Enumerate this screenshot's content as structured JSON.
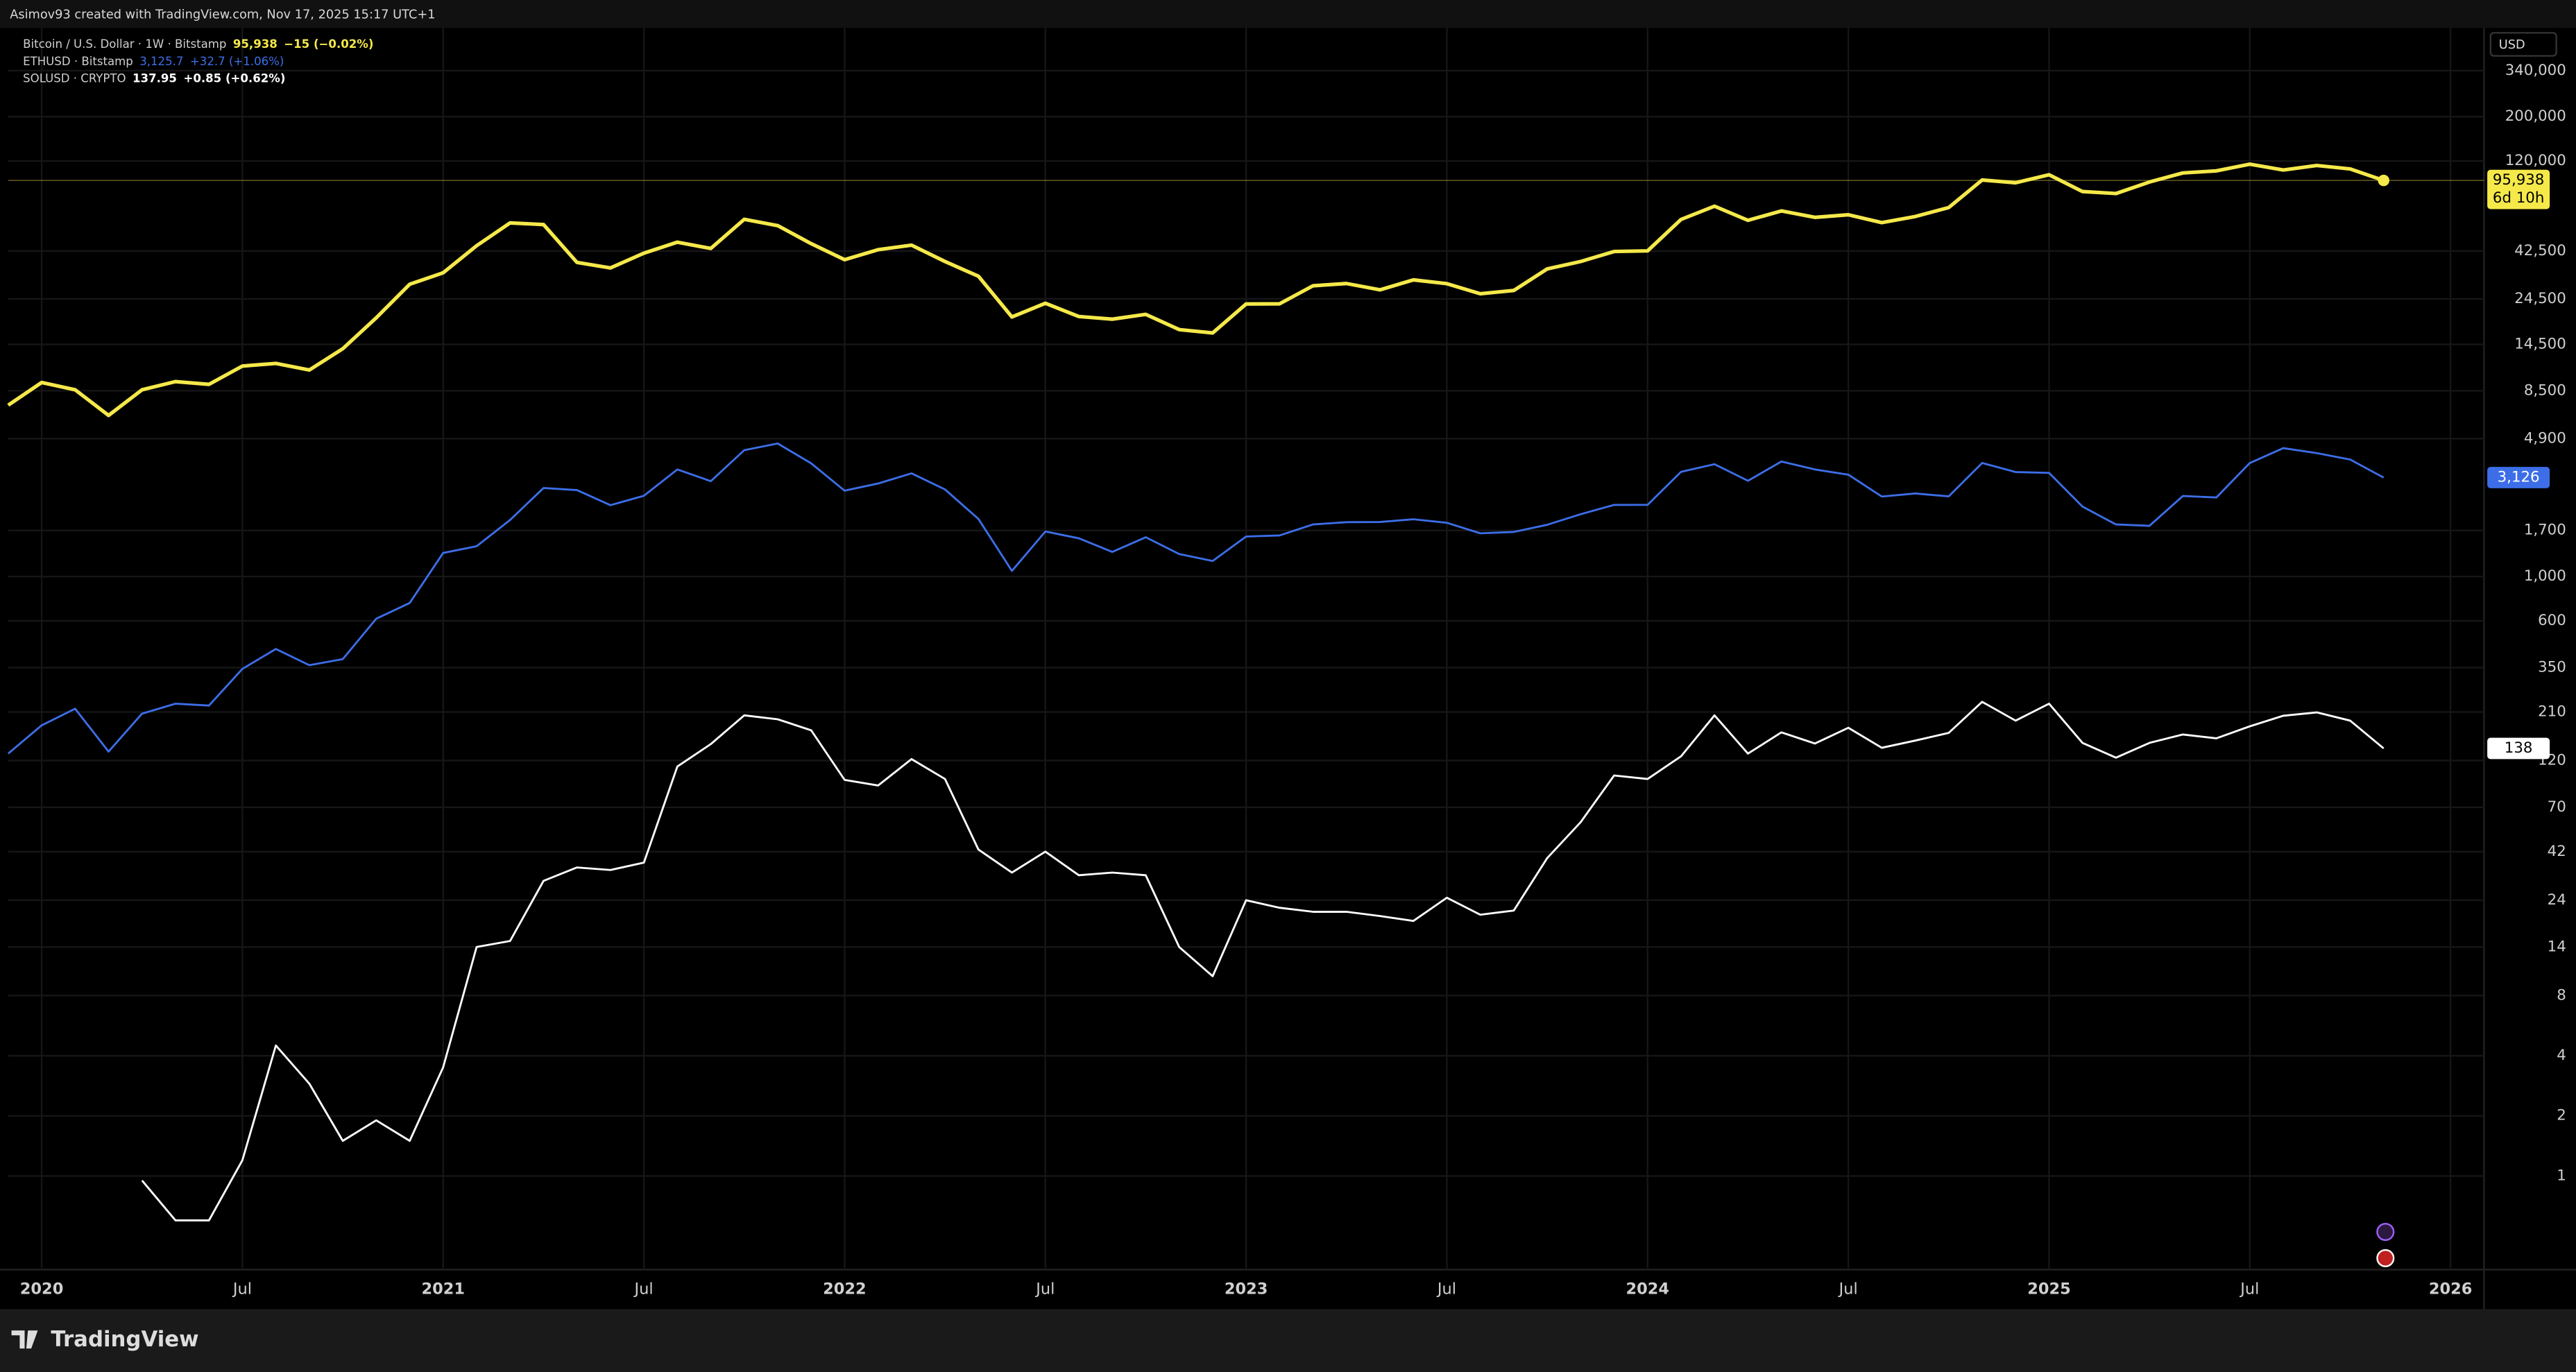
{
  "chart_data": {
    "type": "line",
    "caption": "Asimov93 created with TradingView.com, Nov 17, 2025 15:17 UTC+1",
    "branding": "TradingView",
    "currency": "USD",
    "log_scale": true,
    "grid": true,
    "x": [
      "2019-12",
      "2020-01",
      "2020-02",
      "2020-03",
      "2020-04",
      "2020-05",
      "2020-06",
      "2020-07",
      "2020-08",
      "2020-09",
      "2020-10",
      "2020-11",
      "2020-12",
      "2021-01",
      "2021-02",
      "2021-03",
      "2021-04",
      "2021-05",
      "2021-06",
      "2021-07",
      "2021-08",
      "2021-09",
      "2021-10",
      "2021-11",
      "2021-12",
      "2022-01",
      "2022-02",
      "2022-03",
      "2022-04",
      "2022-05",
      "2022-06",
      "2022-07",
      "2022-08",
      "2022-09",
      "2022-10",
      "2022-11",
      "2022-12",
      "2023-01",
      "2023-02",
      "2023-03",
      "2023-04",
      "2023-05",
      "2023-06",
      "2023-07",
      "2023-08",
      "2023-09",
      "2023-10",
      "2023-11",
      "2023-12",
      "2024-01",
      "2024-02",
      "2024-03",
      "2024-04",
      "2024-05",
      "2024-06",
      "2024-07",
      "2024-08",
      "2024-09",
      "2024-10",
      "2024-11",
      "2024-12",
      "2025-01",
      "2025-02",
      "2025-03",
      "2025-04",
      "2025-05",
      "2025-06",
      "2025-07",
      "2025-08",
      "2025-09",
      "2025-10",
      "2025-11"
    ],
    "xlim": [
      "2019-12",
      "2026-02"
    ],
    "xticks": [
      {
        "value": "2020-01",
        "label": "2020"
      },
      {
        "value": "2020-07",
        "label": "Jul"
      },
      {
        "value": "2021-01",
        "label": "2021"
      },
      {
        "value": "2021-07",
        "label": "Jul"
      },
      {
        "value": "2022-01",
        "label": "2022"
      },
      {
        "value": "2022-07",
        "label": "Jul"
      },
      {
        "value": "2023-01",
        "label": "2023"
      },
      {
        "value": "2023-07",
        "label": "Jul"
      },
      {
        "value": "2024-01",
        "label": "2024"
      },
      {
        "value": "2024-07",
        "label": "Jul"
      },
      {
        "value": "2025-01",
        "label": "2025"
      },
      {
        "value": "2025-07",
        "label": "Jul"
      },
      {
        "value": "2026-01",
        "label": "2026"
      }
    ],
    "ylim": [
      0.34,
      556000
    ],
    "yticks": [
      {
        "value": 340000,
        "label": "340,000"
      },
      {
        "value": 200000,
        "label": "200,000"
      },
      {
        "value": 120000,
        "label": "120,000"
      },
      {
        "value": 42500,
        "label": "42,500"
      },
      {
        "value": 24500,
        "label": "24,500"
      },
      {
        "value": 14500,
        "label": "14,500"
      },
      {
        "value": 8500,
        "label": "8,500"
      },
      {
        "value": 4900,
        "label": "4,900"
      },
      {
        "value": 1700,
        "label": "1,700"
      },
      {
        "value": 1000,
        "label": "1,000"
      },
      600,
      350,
      210,
      120,
      70,
      42,
      24,
      14,
      8,
      4,
      2,
      1
    ],
    "series": [
      {
        "name": "Bitcoin / U.S. Dollar · 1W · Bitstamp",
        "color": "#f5e94a",
        "width": 2.2,
        "legend_value": "95,938",
        "legend_change": "−15 (−0.02%)",
        "price_tag": {
          "value": 95938,
          "label": "95,938"
        },
        "countdown": "6d 10h",
        "values": [
          7200,
          9350,
          8600,
          6400,
          8600,
          9450,
          9150,
          11300,
          11650,
          10800,
          13800,
          19700,
          29000,
          33100,
          45200,
          58800,
          57700,
          37300,
          35000,
          41500,
          47100,
          43800,
          61300,
          57000,
          46300,
          38500,
          43200,
          45500,
          37700,
          31800,
          19900,
          23300,
          20000,
          19400,
          20500,
          17200,
          16550,
          23100,
          23150,
          28500,
          29250,
          27200,
          30500,
          29200,
          26000,
          27000,
          34600,
          37700,
          42300,
          42600,
          61200,
          71300,
          60600,
          67500,
          62700,
          64600,
          59000,
          63300,
          70200,
          96400,
          93400,
          102400,
          84400,
          82500,
          94200,
          104600,
          107100,
          115700,
          108200,
          114000,
          109500,
          95938
        ]
      },
      {
        "name": "ETHUSD · Bitstamp",
        "color": "#3d6ee8",
        "width": 1.2,
        "legend_value": "3,125.7",
        "legend_change": "+32.7 (+1.06%)",
        "price_tag": {
          "value": 3126,
          "label": "3,126"
        },
        "values": [
          130,
          180,
          218,
          133,
          206,
          231,
          226,
          345,
          434,
          360,
          386,
          615,
          737,
          1312,
          1417,
          1918,
          2773,
          2707,
          2275,
          2536,
          3433,
          3000,
          4288,
          4630,
          3683,
          2688,
          2920,
          3282,
          2727,
          1941,
          1067,
          1680,
          1553,
          1328,
          1572,
          1296,
          1196,
          1585,
          1605,
          1822,
          1870,
          1874,
          1934,
          1857,
          1645,
          1671,
          1815,
          2050,
          2282,
          2283,
          3340,
          3647,
          3014,
          3762,
          3433,
          3232,
          2513,
          2603,
          2518,
          3700,
          3332,
          3300,
          2237,
          1822,
          1794,
          2528,
          2486,
          3698,
          4390,
          4145,
          3850,
          3126
        ]
      },
      {
        "name": "SOLUSD · CRYPTO",
        "color": "#ffffff",
        "width": 1.2,
        "legend_value": "137.95",
        "legend_change": "+0.85 (+0.62%)",
        "price_tag": {
          "value": 138,
          "label": "138"
        },
        "values": [
          null,
          null,
          null,
          null,
          0.95,
          0.6,
          0.6,
          1.2,
          4.5,
          2.9,
          1.5,
          1.9,
          1.5,
          3.5,
          14,
          15,
          30,
          35,
          34,
          37,
          112,
          145,
          202,
          193,
          170,
          96,
          90,
          122,
          97,
          43,
          33,
          42,
          32,
          33,
          32,
          14,
          10,
          24,
          22,
          21,
          21,
          20,
          18.9,
          24.7,
          20.3,
          21.3,
          39,
          59,
          101,
          97,
          126,
          202,
          130,
          166,
          146,
          175,
          139,
          151,
          165,
          236,
          190,
          231,
          147,
          124,
          147,
          162,
          155,
          178,
          201,
          209,
          190,
          138
        ]
      }
    ]
  }
}
